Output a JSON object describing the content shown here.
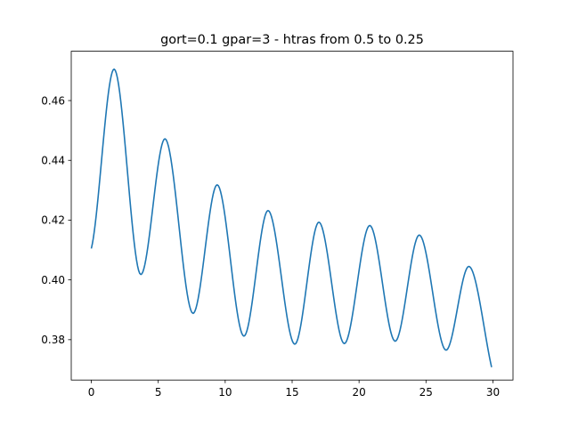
{
  "chart_data": {
    "type": "line",
    "title": "gort=0.1  gpar=3 - htras from 0.5 to 0.25",
    "xlabel": "",
    "ylabel": "",
    "xlim": [
      -1.5,
      31.5
    ],
    "ylim": [
      0.3665,
      0.4765
    ],
    "grid": false,
    "x_ticks": [
      0,
      5,
      10,
      15,
      20,
      25,
      30
    ],
    "x_tick_labels": [
      "0",
      "5",
      "10",
      "15",
      "20",
      "25",
      "30"
    ],
    "y_ticks": [
      0.38,
      0.4,
      0.42,
      0.44,
      0.46
    ],
    "y_tick_labels": [
      "0.38",
      "0.40",
      "0.42",
      "0.44",
      "0.46"
    ],
    "series": [
      {
        "color": "#1f77b4",
        "keypoints": [
          [
            0.0,
            0.4105
          ],
          [
            1.7,
            0.4705
          ],
          [
            3.7,
            0.4018
          ],
          [
            5.5,
            0.4472
          ],
          [
            7.6,
            0.3888
          ],
          [
            9.4,
            0.4318
          ],
          [
            11.4,
            0.3812
          ],
          [
            13.2,
            0.4232
          ],
          [
            15.2,
            0.3785
          ],
          [
            17.0,
            0.4193
          ],
          [
            18.9,
            0.3787
          ],
          [
            20.8,
            0.4182
          ],
          [
            22.7,
            0.3795
          ],
          [
            24.5,
            0.415
          ],
          [
            26.5,
            0.3765
          ],
          [
            28.2,
            0.4045
          ],
          [
            29.9,
            0.3708
          ]
        ]
      }
    ]
  }
}
